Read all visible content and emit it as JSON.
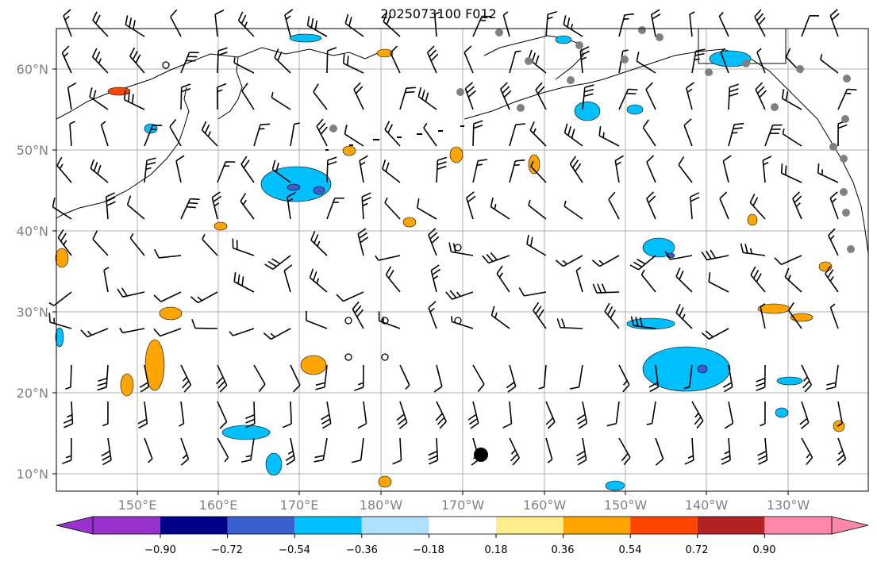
{
  "title": "2025073100 F012",
  "lon_labels": [
    "150°E",
    "160°E",
    "170°E",
    "180°W",
    "170°W",
    "160°W",
    "150°W",
    "140°W",
    "130°W"
  ],
  "lat_labels": [
    "60°N",
    "50°N",
    "40°N",
    "30°N",
    "20°N",
    "10°N"
  ],
  "colorbar": {
    "ticks": [
      "−0.90",
      "−0.72",
      "−0.54",
      "−0.36",
      "−0.18",
      "0.18",
      "0.36",
      "0.54",
      "0.72",
      "0.90"
    ],
    "colors": [
      "#9932cc",
      "#00008b",
      "#3a5fcd",
      "#00bfff",
      "#b0e0ff",
      "#ffffff",
      "#ffec8b",
      "#ffa500",
      "#ff4500",
      "#b22222",
      "#ff88aa"
    ]
  },
  "colors": {
    "grid": "#b0b0b0",
    "axis_label": "#808080",
    "station": "#808080",
    "barb": "#000000"
  }
}
